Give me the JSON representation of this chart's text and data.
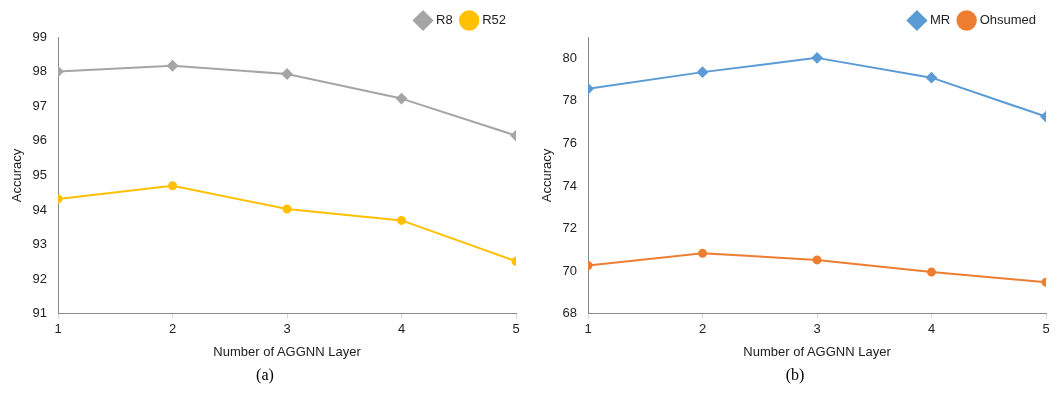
{
  "chart_data": [
    {
      "type": "line",
      "xlabel": "Number of AGGNN Layer",
      "ylabel": "Accuracy",
      "x": [
        1,
        2,
        3,
        4,
        5
      ],
      "xlim": [
        1,
        5
      ],
      "xticks": [
        1,
        2,
        3,
        4,
        5
      ],
      "ylim": [
        91,
        99
      ],
      "yticks": [
        91,
        92,
        93,
        94,
        95,
        96,
        97,
        98,
        99
      ],
      "grid": false,
      "legend": "top right",
      "annotations": [
        "(a)"
      ],
      "series": [
        {
          "name": "R8",
          "color": "#a5a5a5",
          "marker": "diamond",
          "values": [
            98.0,
            98.17,
            97.93,
            97.22,
            96.15
          ]
        },
        {
          "name": "R52",
          "color": "#ffc000",
          "marker": "circle",
          "values": [
            94.32,
            94.7,
            94.03,
            93.7,
            92.52
          ]
        }
      ]
    },
    {
      "type": "line",
      "xlabel": "Number of AGGNN Layer",
      "ylabel": "Accuracy",
      "x": [
        1,
        2,
        3,
        4,
        5
      ],
      "xlim": [
        1,
        5
      ],
      "xticks": [
        1,
        2,
        3,
        4,
        5
      ],
      "ylim": [
        68,
        81
      ],
      "yticks": [
        68,
        70,
        72,
        74,
        76,
        78,
        80
      ],
      "grid": false,
      "legend": "top right",
      "annotations": [
        "(b)"
      ],
      "series": [
        {
          "name": "MR",
          "color": "#5b9bd5",
          "marker": "diamond",
          "values": [
            78.57,
            79.35,
            80.02,
            79.09,
            77.26
          ]
        },
        {
          "name": "Ohsumed",
          "color": "#ed7d31",
          "marker": "circle",
          "values": [
            70.27,
            70.84,
            70.53,
            69.96,
            69.48
          ]
        }
      ]
    }
  ]
}
